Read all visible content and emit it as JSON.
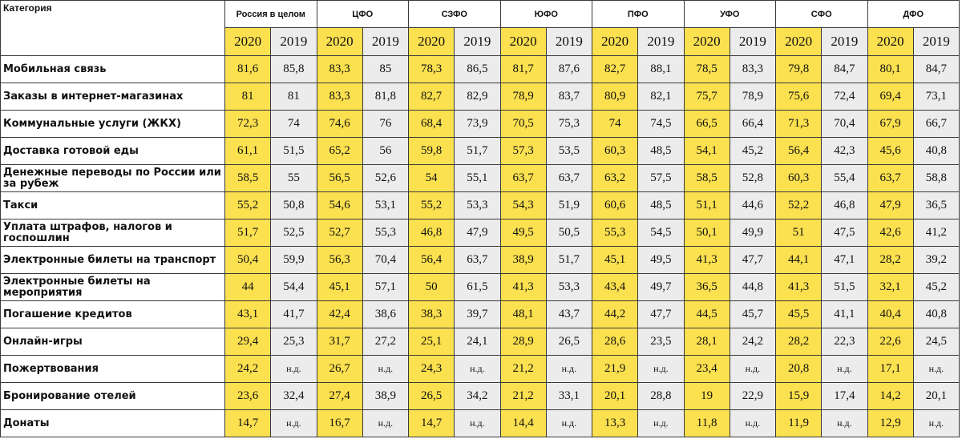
{
  "header": {
    "category_label": "Категория",
    "regions": [
      "Россия в целом",
      "ЦФО",
      "СЗФО",
      "ЮФО",
      "ПФО",
      "УФО",
      "СФО",
      "ДФО"
    ],
    "year_a": "2020",
    "year_b": "2019"
  },
  "colors": {
    "year_2020_fill": "#fbe04f",
    "year_2019_fill": "#ececec",
    "grid": "#3a3a3a"
  },
  "rows": [
    {
      "label": "Мобильная связь",
      "values": [
        "81,6",
        "85,8",
        "83,3",
        "85",
        "78,3",
        "86,5",
        "81,7",
        "87,6",
        "82,7",
        "88,1",
        "78,5",
        "83,3",
        "79,8",
        "84,7",
        "80,1",
        "84,7"
      ]
    },
    {
      "label": "Заказы в интернет-магазинах",
      "values": [
        "81",
        "81",
        "83,3",
        "81,8",
        "82,7",
        "82,9",
        "78,9",
        "83,7",
        "80,9",
        "82,1",
        "75,7",
        "78,9",
        "75,6",
        "72,4",
        "69,4",
        "73,1"
      ]
    },
    {
      "label": "Коммунальные услуги (ЖКХ)",
      "values": [
        "72,3",
        "74",
        "74,6",
        "76",
        "68,4",
        "73,9",
        "70,5",
        "75,3",
        "74",
        "74,5",
        "66,5",
        "66,4",
        "71,3",
        "70,4",
        "67,9",
        "66,7"
      ]
    },
    {
      "label": "Доставка готовой еды",
      "values": [
        "61,1",
        "51,5",
        "65,2",
        "56",
        "59,8",
        "51,7",
        "57,3",
        "53,5",
        "60,3",
        "48,5",
        "54,1",
        "45,2",
        "56,4",
        "42,3",
        "45,6",
        "40,8"
      ]
    },
    {
      "label": "Денежные переводы по России или за рубеж",
      "values": [
        "58,5",
        "55",
        "56,5",
        "52,6",
        "54",
        "55,1",
        "63,7",
        "63,7",
        "63,2",
        "57,5",
        "58,5",
        "52,8",
        "60,3",
        "55,4",
        "63,7",
        "58,8"
      ]
    },
    {
      "label": "Такси",
      "values": [
        "55,2",
        "50,8",
        "54,6",
        "53,1",
        "55,2",
        "53,3",
        "54,3",
        "51,9",
        "60,6",
        "48,5",
        "51,1",
        "44,6",
        "52,2",
        "46,8",
        "47,9",
        "36,5"
      ]
    },
    {
      "label": "Уплата штрафов, налогов и госпошлин",
      "values": [
        "51,7",
        "52,5",
        "52,7",
        "55,3",
        "46,8",
        "47,9",
        "49,5",
        "50,5",
        "55,3",
        "54,5",
        "50,1",
        "49,9",
        "51",
        "47,5",
        "42,6",
        "41,2"
      ]
    },
    {
      "label": "Электронные билеты на транспорт",
      "values": [
        "50,4",
        "59,9",
        "56,3",
        "70,4",
        "56,4",
        "63,7",
        "38,9",
        "51,7",
        "45,1",
        "49,5",
        "41,3",
        "47,7",
        "44,1",
        "47,1",
        "28,2",
        "39,2"
      ]
    },
    {
      "label": "Электронные билеты на мероприятия",
      "values": [
        "44",
        "54,4",
        "45,1",
        "57,1",
        "50",
        "61,5",
        "41,3",
        "53,3",
        "43,4",
        "49,7",
        "36,5",
        "44,8",
        "41,3",
        "51,5",
        "32,1",
        "45,2"
      ]
    },
    {
      "label": "Погашение кредитов",
      "values": [
        "43,1",
        "41,7",
        "42,4",
        "38,6",
        "38,3",
        "39,7",
        "48,1",
        "43,7",
        "44,2",
        "47,7",
        "44,5",
        "45,7",
        "45,5",
        "41,1",
        "40,4",
        "40,8"
      ]
    },
    {
      "label": "Онлайн-игры",
      "values": [
        "29,4",
        "25,3",
        "31,7",
        "27,2",
        "25,1",
        "24,1",
        "28,9",
        "26,5",
        "28,6",
        "23,5",
        "28,1",
        "24,2",
        "28,2",
        "22,3",
        "22,6",
        "24,5"
      ]
    },
    {
      "label": "Пожертвования",
      "values": [
        "24,2",
        "н.д.",
        "26,7",
        "н.д.",
        "24,3",
        "н.д.",
        "21,2",
        "н.д.",
        "21,9",
        "н.д.",
        "23,4",
        "н.д.",
        "20,8",
        "н.д.",
        "17,1",
        "н.д."
      ]
    },
    {
      "label": "Бронирование отелей",
      "values": [
        "23,6",
        "32,4",
        "27,4",
        "38,9",
        "26,5",
        "34,2",
        "21,2",
        "33,1",
        "20,1",
        "28,8",
        "19",
        "22,9",
        "15,9",
        "17,4",
        "14,2",
        "20,1"
      ]
    },
    {
      "label": "Донаты",
      "values": [
        "14,7",
        "н.д.",
        "16,7",
        "н.д.",
        "14,7",
        "н.д.",
        "14,4",
        "н.д.",
        "13,3",
        "н.д.",
        "11,8",
        "н.д.",
        "11,9",
        "н.д.",
        "12,9",
        "н.д."
      ]
    }
  ]
}
